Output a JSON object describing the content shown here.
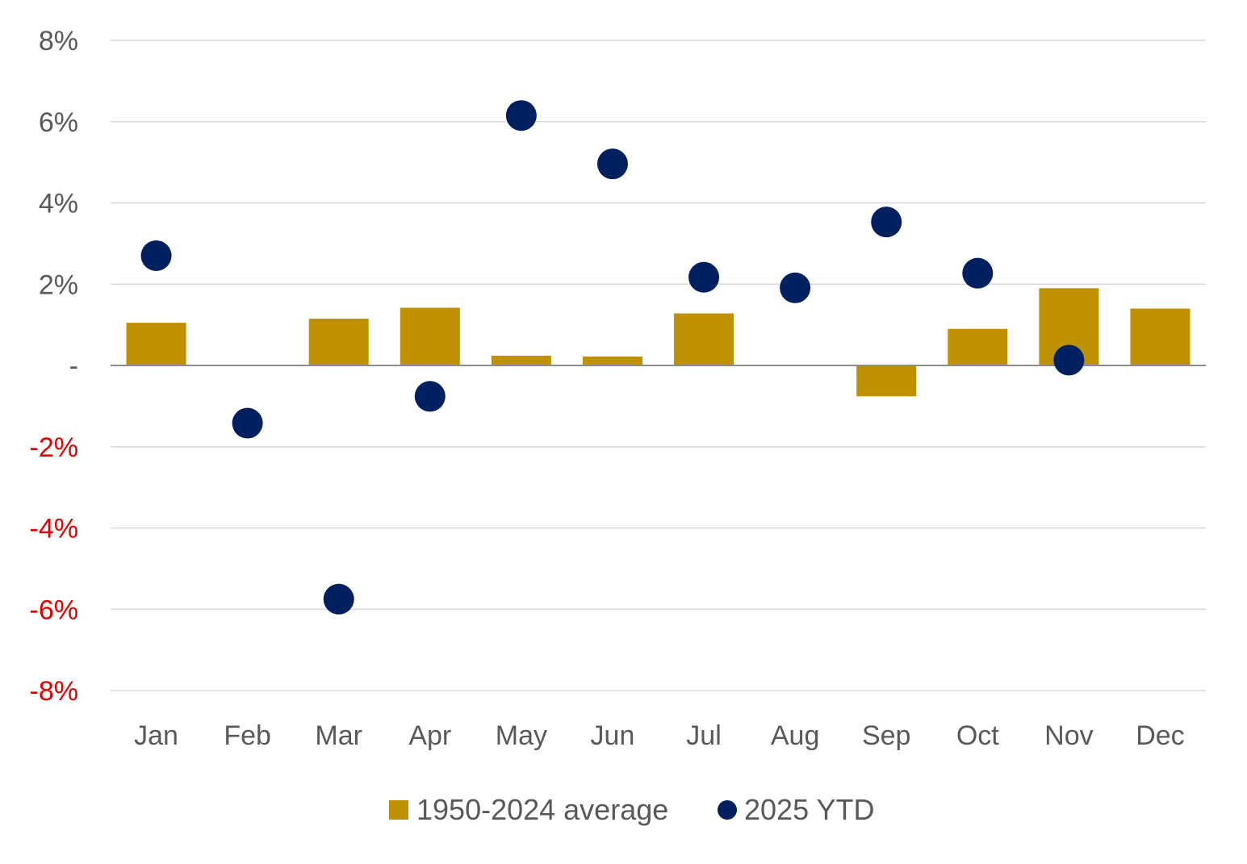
{
  "chart_data": {
    "type": "bar",
    "title": "",
    "xlabel": "",
    "ylabel": "",
    "categories": [
      "Jan",
      "Feb",
      "Mar",
      "Apr",
      "May",
      "Jun",
      "Jul",
      "Aug",
      "Sep",
      "Oct",
      "Nov",
      "Dec"
    ],
    "series": [
      {
        "name": "1950-2024 average",
        "kind": "bar",
        "color": "#bf9000",
        "values": [
          1.05,
          0.0,
          1.15,
          1.42,
          0.24,
          0.22,
          1.28,
          -0.02,
          -0.76,
          0.9,
          1.9,
          1.4
        ]
      },
      {
        "name": "2025 YTD",
        "kind": "scatter",
        "color": "#002060",
        "values": [
          2.7,
          -1.42,
          -5.75,
          -0.76,
          6.15,
          4.96,
          2.17,
          1.91,
          3.53,
          2.27,
          0.13,
          null
        ]
      }
    ],
    "ylim": [
      -8,
      8
    ],
    "yticks": [
      8,
      6,
      4,
      2,
      0,
      -2,
      -4,
      -6,
      -8
    ],
    "ytick_labels": [
      "8%",
      "6%",
      "4%",
      "2%",
      "-",
      "-2%",
      "-4%",
      "-6%",
      "-8%"
    ],
    "negative_tick_color": "#e00000",
    "grid": true,
    "legend": "bottom"
  }
}
